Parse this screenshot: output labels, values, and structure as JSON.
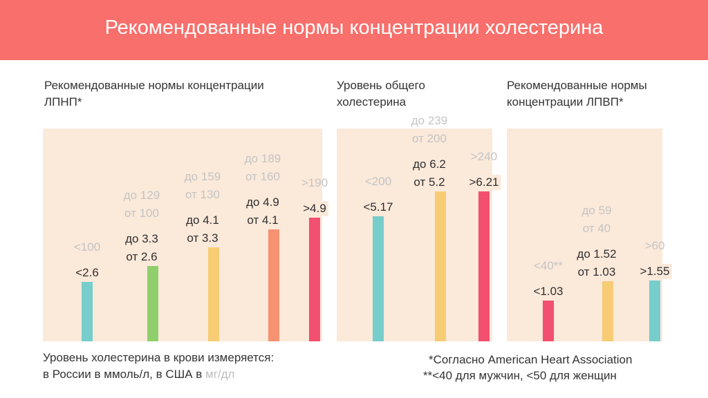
{
  "header": {
    "title": "Рекомендованные нормы концентрации холестерина"
  },
  "colors": {
    "banner": "#f86f6b",
    "panel": "#fbe9da",
    "teal": "#76cdcb",
    "green": "#8fcf6c",
    "yellow": "#f7cc74",
    "salmon": "#f79270",
    "pink": "#f34f6e"
  },
  "chart_data": [
    {
      "type": "bar",
      "title": "Рекомендованные нормы концентрации ЛПНП*",
      "categories": [
        "<2.6",
        "до 3.3 от 2.6",
        "до 4.1 от 3.3",
        "до 4.9 от 4.1",
        ">4.9"
      ],
      "mmol_labels": [
        [
          "<2.6"
        ],
        [
          "до 3.3",
          "от 2.6"
        ],
        [
          "до 4.1",
          "от 3.3"
        ],
        [
          "до 4.9",
          "от 4.1"
        ],
        [
          ">4.9"
        ]
      ],
      "mgdl_labels": [
        [
          "<100"
        ],
        [
          "до 129",
          "от 100"
        ],
        [
          "до 159",
          "от 130"
        ],
        [
          "до 189",
          "от 160"
        ],
        [
          ">190"
        ]
      ],
      "values": [
        2.6,
        3.3,
        4.1,
        4.9,
        5.4
      ],
      "bar_colors": [
        "teal",
        "green",
        "yellow",
        "salmon",
        "pink"
      ],
      "ylim": [
        0,
        9.3
      ]
    },
    {
      "type": "bar",
      "title": "Уровень общего холестерина",
      "categories": [
        "<5.17",
        "до 6.2 от 5.2",
        ">6.21"
      ],
      "mmol_labels": [
        [
          "<5.17"
        ],
        [
          "до 6.2",
          "от 5.2"
        ],
        [
          ">6.21"
        ]
      ],
      "mgdl_labels": [
        [
          "<200"
        ],
        [
          "до 239",
          "от 200"
        ],
        [
          ">240"
        ]
      ],
      "values": [
        5.17,
        6.2,
        6.21
      ],
      "bar_colors": [
        "teal",
        "yellow",
        "pink"
      ],
      "ylim": [
        0,
        8.8
      ]
    },
    {
      "type": "bar",
      "title": "Рекомендованные нормы концентрации ЛПВП*",
      "categories": [
        "<1.03",
        "до 1.52 от 1.03",
        ">1.55"
      ],
      "mmol_labels": [
        [
          "<1.03"
        ],
        [
          "до 1.52",
          "от 1.03"
        ],
        [
          ">1.55"
        ]
      ],
      "mgdl_labels": [
        [
          "<40**"
        ],
        [
          "до 59",
          "от 40"
        ],
        [
          ">60"
        ]
      ],
      "values": [
        1.03,
        1.52,
        1.55
      ],
      "bar_colors": [
        "pink",
        "yellow",
        "teal"
      ],
      "ylim": [
        0,
        5.4
      ]
    }
  ],
  "note": {
    "line1": "Уровень холестерина в крови измеряется:",
    "line2_prefix": "в России в ммоль/л, в США в ",
    "line2_unit": "мг/дл"
  },
  "footnotes": {
    "aha": "*Согласно American Heart Association",
    "gender": "**<40 для мужчин, <50 для женщин"
  }
}
